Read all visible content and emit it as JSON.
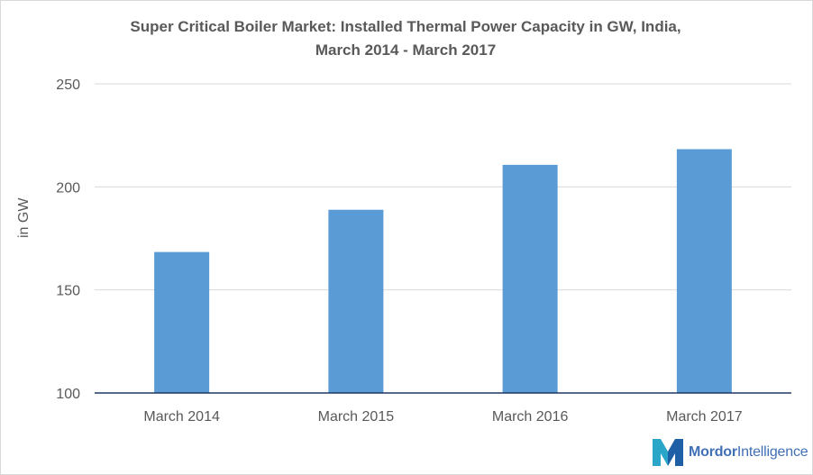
{
  "chart_data": {
    "type": "bar",
    "title_line1": "Super Critical Boiler Market: Installed Thermal Power Capacity in GW, India,",
    "title_line2": "March 2014 - March 2017",
    "ylabel": "in GW",
    "xlabel": "",
    "categories": [
      "March 2014",
      "March 2015",
      "March 2016",
      "March 2017"
    ],
    "values": [
      168.4,
      188.9,
      210.7,
      218.3
    ],
    "ylim": [
      100,
      250
    ],
    "yticks": [
      100,
      150,
      200,
      250
    ],
    "grid": true,
    "bar_color": "#5b9bd5"
  },
  "logo": {
    "word1": "Mordor",
    "word2": "Intelligence"
  }
}
